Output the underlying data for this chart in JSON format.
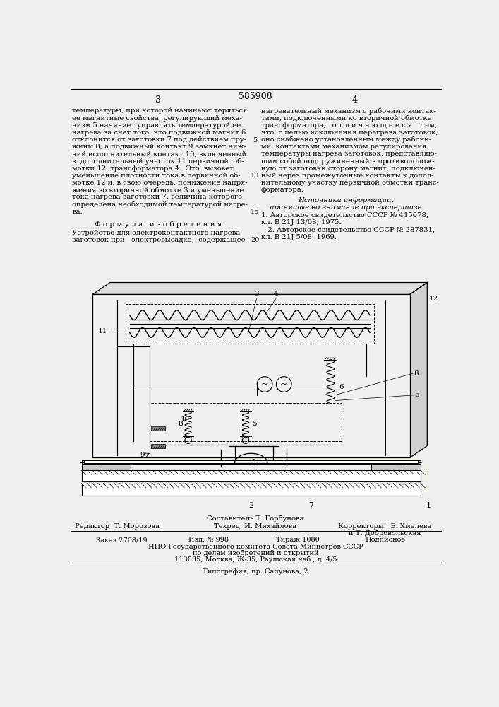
{
  "bg_color": "#f0f0ec",
  "patent_number": "585908",
  "page_left": "3",
  "page_right": "4",
  "left_column_text": [
    "температуры, при которой начинают теряться",
    "ее магнитные свойства, регулирующий меха-",
    "низм 5 начинает управлять температурой ее",
    "нагрева за счет того, что подвижной магнит 6",
    "отклонится от заготовки 7 под действием пру-",
    "жины 8, а подвижный контакт 9 замкнет ниж-",
    "ний исполнительный контакт 10, включенный",
    "в  дополнительный участок 11 первичной  об-",
    "мотки 12  трансформатора 4.  Это  вызовет",
    "уменьшение плотности тока в первичной об-",
    "мотке 12 и, в свою очередь, понижение напря-",
    "жения во вторичной обмотке 3 и уменьшение",
    "тока нагрева заготовки 7, величина которого",
    "определена необходимой температурой нагре-",
    "ва."
  ],
  "formula_title": "Ф о р м у л а   и з о б р е т е н и я",
  "formula_text_1": "Устройство для электроконтактного нагрева",
  "formula_text_2": "заготовок при   электровысадке,  содержащее",
  "right_column_text": [
    "нагревательный механизм с рабочими контак-",
    "тами, подключенными ко вторичной обмотке",
    "трансформатора,   о т л и ч а ю щ е е с я    тем,",
    "что, с целью исключения перегрева заготовок,",
    "оно снабжено установленным между рабочи-",
    "ми  контактами механизмом регулирования",
    "температуры нагрева заготовок, представляю-",
    "щим собой подпружиненный в противополож-",
    "ную от заготовки сторону магнит, подключен-",
    "ный через промежуточные контакты к допол-",
    "нительному участку первичной обмотки транс-",
    "форматора."
  ],
  "sources_title": "Источники информации,",
  "sources_subtitle": "принятые во внимание при экспертизе",
  "source1": "1. Авторское свидетельство СССР № 415078,",
  "source1b": "кл. В 21J 13/08, 1975.",
  "source2": "   2. Авторское свидетельство СССР № 287831,",
  "source2b": "кл. В 21J 5/08, 1969.",
  "footer_sostavitel": "Составитель Т. Горбунова",
  "footer_redaktor": "Редактор  Т. Морозова",
  "footer_tehred": "Техред  И. Михайлова",
  "footer_korr1": "Корректоры:  Е. Хмелева",
  "footer_korr2": "и Т. Добровольская",
  "footer_order": "Заказ 2708/19",
  "footer_num": "Изд. № 998",
  "footer_tirazh": "Тираж 1080",
  "footer_podp": "Подписное",
  "footer_org1": "НПО Государственного комитета Совета Министров СССР",
  "footer_org2": "по делам изобретений и открытий",
  "footer_addr": "113035, Москва, Ж-35, Раушская наб., д. 4/5",
  "footer_typo": "Типография, пр. Сапунова, 2"
}
